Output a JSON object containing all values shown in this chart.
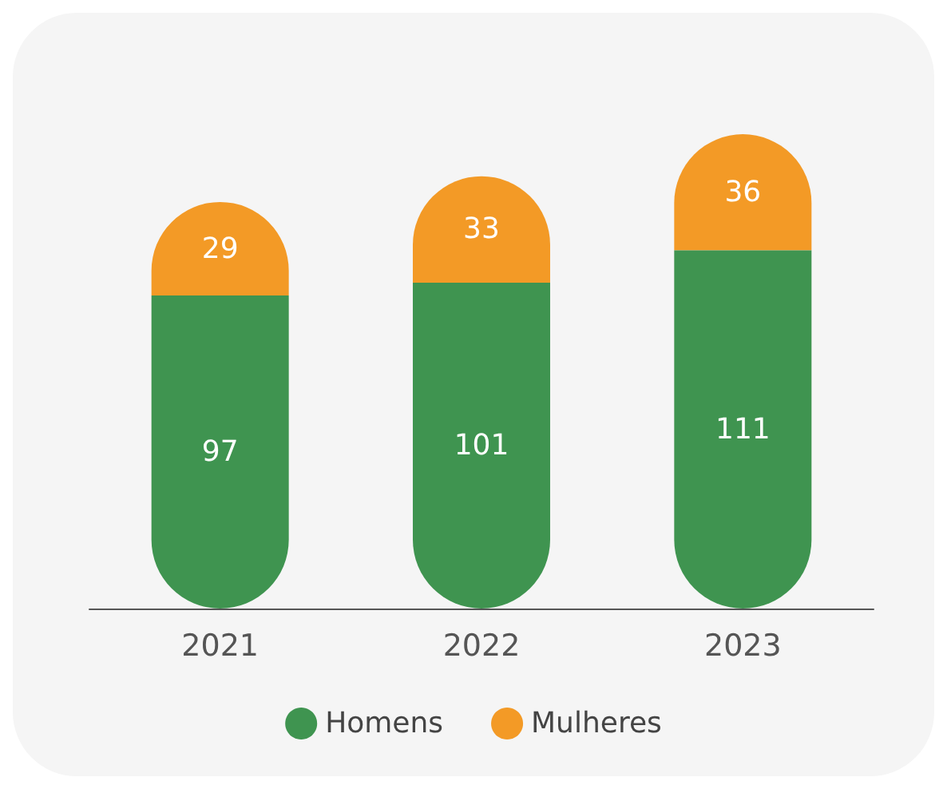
{
  "chart_data": {
    "type": "bar",
    "stacked": true,
    "categories": [
      "2021",
      "2022",
      "2023"
    ],
    "series": [
      {
        "name": "Homens",
        "color": "#3f9450",
        "values": [
          97,
          101,
          111
        ]
      },
      {
        "name": "Mulheres",
        "color": "#f39a26",
        "values": [
          29,
          33,
          36
        ]
      }
    ],
    "data_labels": true,
    "legend": "bottom"
  }
}
